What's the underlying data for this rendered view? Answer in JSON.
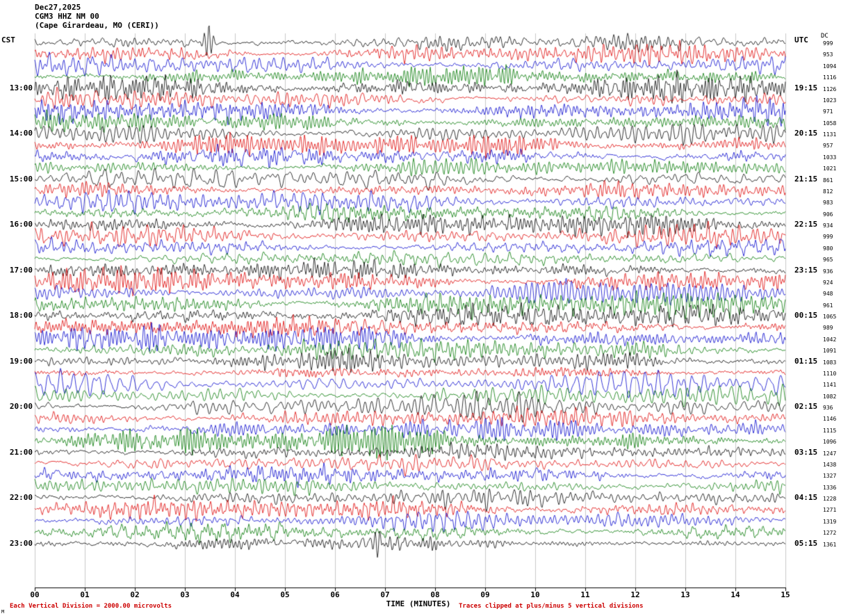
{
  "header": {
    "date": "Dec27,2025",
    "station": "CGM3 HHZ NM 00",
    "location": "(Cape Girardeau, MO (CERI))"
  },
  "axes": {
    "left_header": "CST",
    "right_header": "UTC",
    "dc_header": "DC",
    "x_label": "TIME (MINUTES)",
    "x_ticks": [
      "00",
      "01",
      "02",
      "03",
      "04",
      "05",
      "06",
      "07",
      "08",
      "09",
      "10",
      "11",
      "12",
      "13",
      "14",
      "15"
    ]
  },
  "footer": {
    "left": "Each Vertical Division = 2000.00 microvolts",
    "right": "Traces clipped at plus/minus 5 vertical divisions",
    "corner_mark": "M"
  },
  "colors": {
    "black_trace": "#000000",
    "red_trace": "#dd0000",
    "blue_trace": "#0000cc",
    "green_trace": "#007700",
    "grid": "#c9c9c9",
    "axis": "#000000",
    "footer_text": "#cc0000"
  },
  "chart_data": {
    "type": "line",
    "subtype": "seismogram-helicorder",
    "title": "CGM3 HHZ NM 00 (Cape Girardeau, MO (CERI)) Dec27,2025",
    "xlabel": "TIME (MINUTES)",
    "x_range_minutes": [
      0,
      15
    ],
    "minutes_per_line": 15,
    "grid": "vertical-minute-lines",
    "legend_position": "none",
    "vertical_division_microvolts": 2000.0,
    "clip_divisions": 5,
    "traces": [
      {
        "cst_label": "",
        "utc_label": "",
        "dc": "999",
        "color": "#000000"
      },
      {
        "cst_label": "",
        "utc_label": "",
        "dc": "953",
        "color": "#dd0000"
      },
      {
        "cst_label": "",
        "utc_label": "",
        "dc": "1094",
        "color": "#0000cc"
      },
      {
        "cst_label": "",
        "utc_label": "",
        "dc": "1116",
        "color": "#007700"
      },
      {
        "cst_label": "13:00",
        "utc_label": "19:15",
        "dc": "1126",
        "color": "#000000"
      },
      {
        "cst_label": "",
        "utc_label": "",
        "dc": "1023",
        "color": "#dd0000"
      },
      {
        "cst_label": "",
        "utc_label": "",
        "dc": "971",
        "color": "#0000cc"
      },
      {
        "cst_label": "",
        "utc_label": "",
        "dc": "1058",
        "color": "#007700"
      },
      {
        "cst_label": "14:00",
        "utc_label": "20:15",
        "dc": "1131",
        "color": "#000000"
      },
      {
        "cst_label": "",
        "utc_label": "",
        "dc": "957",
        "color": "#dd0000"
      },
      {
        "cst_label": "",
        "utc_label": "",
        "dc": "1033",
        "color": "#0000cc"
      },
      {
        "cst_label": "",
        "utc_label": "",
        "dc": "1021",
        "color": "#007700"
      },
      {
        "cst_label": "15:00",
        "utc_label": "21:15",
        "dc": "861",
        "color": "#000000"
      },
      {
        "cst_label": "",
        "utc_label": "",
        "dc": "812",
        "color": "#dd0000"
      },
      {
        "cst_label": "",
        "utc_label": "",
        "dc": "983",
        "color": "#0000cc"
      },
      {
        "cst_label": "",
        "utc_label": "",
        "dc": "906",
        "color": "#007700"
      },
      {
        "cst_label": "16:00",
        "utc_label": "22:15",
        "dc": "934",
        "color": "#000000"
      },
      {
        "cst_label": "",
        "utc_label": "",
        "dc": "999",
        "color": "#dd0000"
      },
      {
        "cst_label": "",
        "utc_label": "",
        "dc": "980",
        "color": "#0000cc"
      },
      {
        "cst_label": "",
        "utc_label": "",
        "dc": "965",
        "color": "#007700"
      },
      {
        "cst_label": "17:00",
        "utc_label": "23:15",
        "dc": "936",
        "color": "#000000"
      },
      {
        "cst_label": "",
        "utc_label": "",
        "dc": "924",
        "color": "#dd0000"
      },
      {
        "cst_label": "",
        "utc_label": "",
        "dc": "948",
        "color": "#0000cc"
      },
      {
        "cst_label": "",
        "utc_label": "",
        "dc": "961",
        "color": "#007700"
      },
      {
        "cst_label": "18:00",
        "utc_label": "00:15",
        "dc": "1065",
        "color": "#000000"
      },
      {
        "cst_label": "",
        "utc_label": "",
        "dc": "989",
        "color": "#dd0000"
      },
      {
        "cst_label": "",
        "utc_label": "",
        "dc": "1042",
        "color": "#0000cc"
      },
      {
        "cst_label": "",
        "utc_label": "",
        "dc": "1091",
        "color": "#007700"
      },
      {
        "cst_label": "19:00",
        "utc_label": "01:15",
        "dc": "1083",
        "color": "#000000"
      },
      {
        "cst_label": "",
        "utc_label": "",
        "dc": "1110",
        "color": "#dd0000"
      },
      {
        "cst_label": "",
        "utc_label": "",
        "dc": "1141",
        "color": "#0000cc"
      },
      {
        "cst_label": "",
        "utc_label": "",
        "dc": "1082",
        "color": "#007700"
      },
      {
        "cst_label": "20:00",
        "utc_label": "02:15",
        "dc": "936",
        "color": "#000000"
      },
      {
        "cst_label": "",
        "utc_label": "",
        "dc": "1146",
        "color": "#dd0000"
      },
      {
        "cst_label": "",
        "utc_label": "",
        "dc": "1115",
        "color": "#0000cc"
      },
      {
        "cst_label": "",
        "utc_label": "",
        "dc": "1096",
        "color": "#007700"
      },
      {
        "cst_label": "21:00",
        "utc_label": "03:15",
        "dc": "1247",
        "color": "#000000"
      },
      {
        "cst_label": "",
        "utc_label": "",
        "dc": "1438",
        "color": "#dd0000"
      },
      {
        "cst_label": "",
        "utc_label": "",
        "dc": "1327",
        "color": "#0000cc"
      },
      {
        "cst_label": "",
        "utc_label": "",
        "dc": "1336",
        "color": "#007700"
      },
      {
        "cst_label": "22:00",
        "utc_label": "04:15",
        "dc": "1228",
        "color": "#000000"
      },
      {
        "cst_label": "",
        "utc_label": "",
        "dc": "1271",
        "color": "#dd0000"
      },
      {
        "cst_label": "",
        "utc_label": "",
        "dc": "1319",
        "color": "#0000cc"
      },
      {
        "cst_label": "",
        "utc_label": "",
        "dc": "1272",
        "color": "#007700"
      },
      {
        "cst_label": "23:00",
        "utc_label": "05:15",
        "dc": "1361",
        "color": "#000000"
      }
    ]
  }
}
